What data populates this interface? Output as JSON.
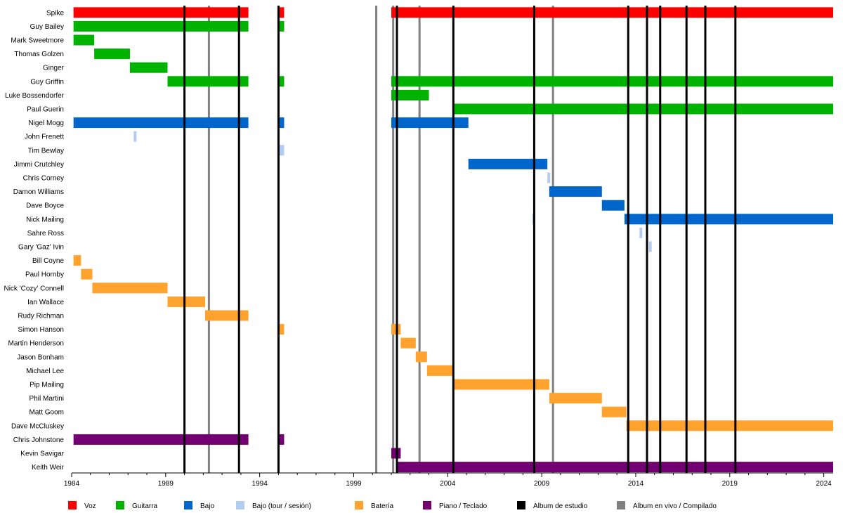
{
  "chart_data": {
    "type": "timeline",
    "xlim": [
      1984,
      2024.5
    ],
    "xticks": [
      "1984",
      "1989",
      "1994",
      "1999",
      "2004",
      "2009",
      "2014",
      "2019",
      "2024"
    ],
    "colors": {
      "voz": "#ff0000",
      "guitarra": "#00b300",
      "bajo": "#0066cc",
      "bajo_tour": "#b3cdf2",
      "bateria": "#ffa22e",
      "piano": "#730073",
      "estudio": "#000000",
      "envivo": "#808080"
    },
    "legend": [
      {
        "label": "Voz",
        "color": "voz"
      },
      {
        "label": "Guitarra",
        "color": "guitarra"
      },
      {
        "label": "Bajo",
        "color": "bajo"
      },
      {
        "label": "Bajo (tour / sesión)",
        "color": "bajo_tour"
      },
      {
        "label": "Batería",
        "color": "bateria"
      },
      {
        "label": "Piano / Teclado",
        "color": "piano"
      },
      {
        "label": "Album de estudio",
        "color": "estudio"
      },
      {
        "label": "Album en vivo / Compilado",
        "color": "envivo"
      }
    ],
    "studio_albums": [
      1990.0,
      1992.9,
      1995.0,
      2001.3,
      2004.3,
      2008.6,
      2013.6,
      2014.6,
      2015.3,
      2016.7,
      2017.7,
      2019.3
    ],
    "live_albums": [
      1991.3,
      1995.0,
      2000.2,
      2001.1,
      2002.5,
      2009.6
    ],
    "members": [
      {
        "name": "Spike",
        "bars": [
          {
            "s": 1984.1,
            "e": 1993.4,
            "c": "voz"
          },
          {
            "s": 1995.0,
            "e": 1995.3,
            "c": "voz"
          },
          {
            "s": 2001.0,
            "e": 2024.5,
            "c": "voz"
          }
        ]
      },
      {
        "name": "Guy Bailey",
        "bars": [
          {
            "s": 1984.1,
            "e": 1993.4,
            "c": "guitarra"
          },
          {
            "s": 1995.0,
            "e": 1995.3,
            "c": "guitarra"
          }
        ]
      },
      {
        "name": "Mark Sweetmore",
        "bars": [
          {
            "s": 1984.1,
            "e": 1985.2,
            "c": "guitarra"
          }
        ]
      },
      {
        "name": "Thomas Golzen",
        "bars": [
          {
            "s": 1985.2,
            "e": 1987.1,
            "c": "guitarra"
          }
        ]
      },
      {
        "name": "Ginger",
        "bars": [
          {
            "s": 1987.1,
            "e": 1989.1,
            "c": "guitarra"
          }
        ]
      },
      {
        "name": "Guy Griffin",
        "bars": [
          {
            "s": 1989.1,
            "e": 1993.4,
            "c": "guitarra"
          },
          {
            "s": 1995.0,
            "e": 1995.3,
            "c": "guitarra"
          },
          {
            "s": 2001.0,
            "e": 2024.5,
            "c": "guitarra"
          }
        ]
      },
      {
        "name": "Luke Bossendorfer",
        "bars": [
          {
            "s": 2001.0,
            "e": 2003.0,
            "c": "guitarra"
          }
        ]
      },
      {
        "name": "Paul Guerin",
        "bars": [
          {
            "s": 2004.3,
            "e": 2024.5,
            "c": "guitarra"
          }
        ]
      },
      {
        "name": "Nigel Mogg",
        "bars": [
          {
            "s": 1984.1,
            "e": 1993.4,
            "c": "bajo"
          },
          {
            "s": 1995.0,
            "e": 1995.3,
            "c": "bajo"
          },
          {
            "s": 2001.0,
            "e": 2005.1,
            "c": "bajo"
          }
        ]
      },
      {
        "name": "John Frenett",
        "bars": [
          {
            "s": 1987.3,
            "e": 1987.45,
            "c": "bajo_tour"
          }
        ]
      },
      {
        "name": "Tim Bewlay",
        "bars": [
          {
            "s": 1995.0,
            "e": 1995.3,
            "c": "bajo_tour"
          }
        ]
      },
      {
        "name": "Jimmi Crutchley",
        "bars": [
          {
            "s": 2005.1,
            "e": 2009.3,
            "c": "bajo"
          }
        ]
      },
      {
        "name": "Chris Corney",
        "bars": [
          {
            "s": 2009.3,
            "e": 2009.45,
            "c": "bajo_tour"
          }
        ]
      },
      {
        "name": "Damon Williams",
        "bars": [
          {
            "s": 2009.4,
            "e": 2012.2,
            "c": "bajo"
          }
        ]
      },
      {
        "name": "Dave Boyce",
        "bars": [
          {
            "s": 2012.2,
            "e": 2013.4,
            "c": "bajo"
          }
        ]
      },
      {
        "name": "Nick Mailing",
        "bars": [
          {
            "s": 2008.5,
            "e": 2008.65,
            "c": "bajo_tour"
          },
          {
            "s": 2013.4,
            "e": 2024.5,
            "c": "bajo"
          }
        ]
      },
      {
        "name": "Sahre Ross",
        "bars": [
          {
            "s": 2014.2,
            "e": 2014.3,
            "c": "bajo_tour"
          }
        ]
      },
      {
        "name": "Gary 'Gaz' Ivin",
        "bars": [
          {
            "s": 2014.7,
            "e": 2014.82,
            "c": "bajo_tour"
          }
        ]
      },
      {
        "name": "Bill Coyne",
        "bars": [
          {
            "s": 1984.1,
            "e": 1984.5,
            "c": "bateria"
          }
        ]
      },
      {
        "name": "Paul Hornby",
        "bars": [
          {
            "s": 1984.5,
            "e": 1985.1,
            "c": "bateria"
          }
        ]
      },
      {
        "name": "Nick 'Cozy' Connell",
        "bars": [
          {
            "s": 1985.1,
            "e": 1989.1,
            "c": "bateria"
          }
        ]
      },
      {
        "name": "Ian Wallace",
        "bars": [
          {
            "s": 1989.1,
            "e": 1991.1,
            "c": "bateria"
          }
        ]
      },
      {
        "name": "Rudy Richman",
        "bars": [
          {
            "s": 1991.1,
            "e": 1993.4,
            "c": "bateria"
          }
        ]
      },
      {
        "name": "Simon Hanson",
        "bars": [
          {
            "s": 1995.0,
            "e": 1995.3,
            "c": "bateria"
          },
          {
            "s": 2001.0,
            "e": 2001.5,
            "c": "bateria"
          }
        ]
      },
      {
        "name": "Martin Henderson",
        "bars": [
          {
            "s": 2001.5,
            "e": 2002.3,
            "c": "bateria"
          }
        ]
      },
      {
        "name": "Jason Bonham",
        "bars": [
          {
            "s": 2002.3,
            "e": 2002.9,
            "c": "bateria"
          }
        ]
      },
      {
        "name": "Michael Lee",
        "bars": [
          {
            "s": 2002.9,
            "e": 2004.3,
            "c": "bateria"
          }
        ]
      },
      {
        "name": "Pip Mailing",
        "bars": [
          {
            "s": 2004.3,
            "e": 2009.4,
            "c": "bateria"
          }
        ]
      },
      {
        "name": "Phil Martini",
        "bars": [
          {
            "s": 2009.4,
            "e": 2012.2,
            "c": "bateria"
          }
        ]
      },
      {
        "name": "Matt Goom",
        "bars": [
          {
            "s": 2012.2,
            "e": 2013.5,
            "c": "bateria"
          }
        ]
      },
      {
        "name": "Dave McCluskey",
        "bars": [
          {
            "s": 2013.5,
            "e": 2024.5,
            "c": "bateria"
          }
        ]
      },
      {
        "name": "Chris Johnstone",
        "bars": [
          {
            "s": 1984.1,
            "e": 1993.4,
            "c": "piano"
          },
          {
            "s": 1995.0,
            "e": 1995.3,
            "c": "piano"
          }
        ]
      },
      {
        "name": "Kevin Savigar",
        "bars": [
          {
            "s": 2001.0,
            "e": 2001.5,
            "c": "piano"
          }
        ]
      },
      {
        "name": "Keith Weir",
        "bars": [
          {
            "s": 2001.3,
            "e": 2024.5,
            "c": "piano"
          }
        ]
      }
    ]
  }
}
